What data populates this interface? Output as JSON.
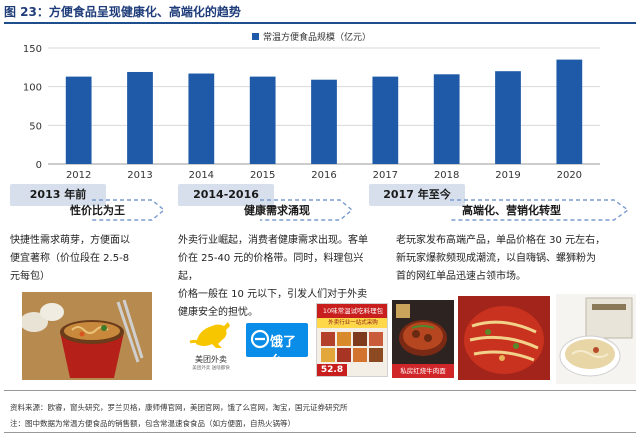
{
  "figure": {
    "title": "图 23：方便食品呈现健康化、高端化的趋势"
  },
  "chart_data": {
    "type": "bar",
    "categories": [
      "2012",
      "2013",
      "2014",
      "2015",
      "2016",
      "2017",
      "2018",
      "2019",
      "2020"
    ],
    "series": [
      {
        "name": "常温方便食品规模（亿元）",
        "values": [
          113,
          119,
          117,
          113,
          109,
          113,
          116,
          120,
          135
        ]
      }
    ],
    "ylim": [
      0,
      150
    ],
    "yticks": [
      0,
      50,
      100,
      150
    ],
    "grid": true,
    "legend": "top-center",
    "bar_color": "#1e5aa8"
  },
  "timeline": [
    {
      "period": "2013 年前",
      "theme": "性价比为王",
      "description": "快捷性需求萌芽，方便面以\n便宜著称（价位段在 2.5-8\n元每包）"
    },
    {
      "period": "2014-2016",
      "theme": "健康需求涌现",
      "description": "外卖行业崛起，消费者健康需求出现。客单\n价在 25-40 元的价格带。同时，料理包兴起，\n价格一般在 10 元以下，引发人们对于外卖\n健康安全的担忧。"
    },
    {
      "period": "2017 年至今",
      "theme": "高端化、营销化转型",
      "description": "老玩家发布高端产品，单品价格在 30 元左右，\n新玩家爆款频现成潮流，以自嗨锅、螺狮粉为\n首的网红单品迅速占领市场。"
    }
  ],
  "images": {
    "meituan_label": "美团外卖",
    "meituan_sub": "美团外卖  送啥都快",
    "eleme_label": "饿了么",
    "ad_line1": "10味常温试吃料理包",
    "ad_line2": "外卖行业一站式采购",
    "ad_price": "52.8",
    "box_label": "私房红烧牛肉面"
  },
  "footer": {
    "source": "资料来源：欧睿，窗头研究，罗兰贝格，康师傅官网，美团官网，饿了么官网，淘宝，国元证券研究所",
    "note": "注：图中数据为常温方便食品的销售额，包含常温速食食品（如方便面，自热火锅等）"
  },
  "colors": {
    "accent": "#1e5aa8",
    "title": "#1f3d7a",
    "period_bg": "#d7dfec",
    "meituan": "#f7c600",
    "eleme": "#0a8de8"
  }
}
